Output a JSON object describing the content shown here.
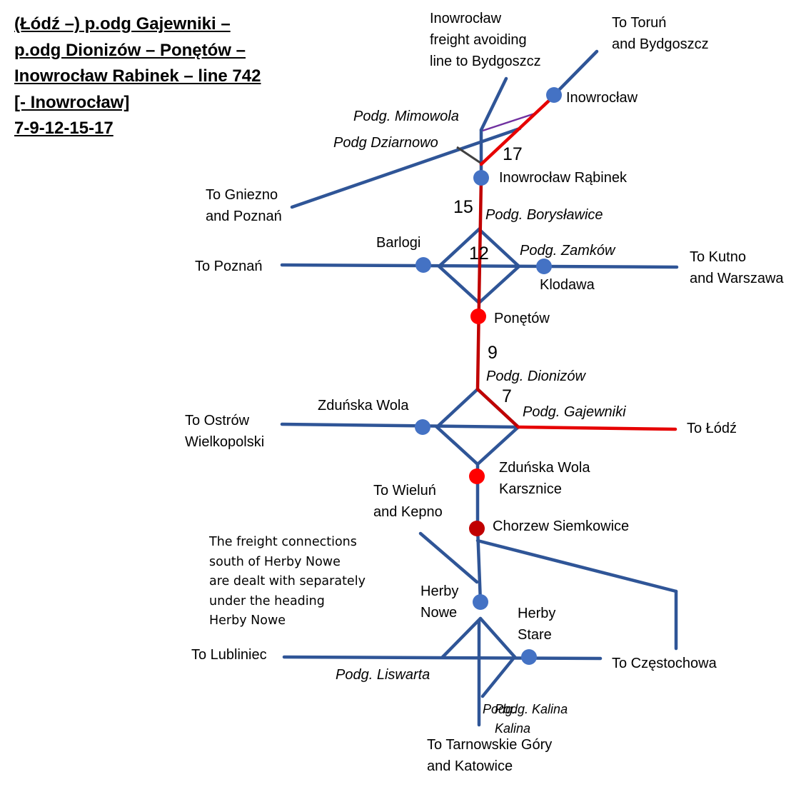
{
  "title": {
    "line1": "(Łódź –) p.odg Gajewniki –",
    "line2": "p.odg Dionizów – Ponętów –",
    "line3": "Inowrocław Rabinek – line 742",
    "line4": "[- Inowrocław]",
    "line5": "7-9-12-15-17"
  },
  "labels": {
    "freight_avoiding_1": "Inowrocław",
    "freight_avoiding_2": "freight avoiding",
    "freight_avoiding_3": "line to Bydgoszcz",
    "to_torun_1": "To Toruń",
    "to_torun_2": "and Bydgoszcz",
    "inowroclaw": "Inowrocław",
    "mimowola": "Podg. Mimowola",
    "dziarnowo": "Podg Dziarnowo",
    "rabinek": "Inowrocław Rąbinek",
    "to_gniezno_1": "To Gniezno",
    "to_gniezno_2": "and Poznań",
    "borystawice": "Podg. Borysławice",
    "barlogi": "Barlogi",
    "zamkow": "Podg. Zamków",
    "to_kutno_1": "To Kutno",
    "to_kutno_2": "and Warszawa",
    "to_poznan": "To Poznań",
    "klodawa": "Klodawa",
    "ponetow": "Ponętów",
    "dionizow": "Podg. Dionizów",
    "zdunska_wola": "Zduńska Wola",
    "gajewniki": "Podg. Gajewniki",
    "to_ostrow_1": "To Ostrów",
    "to_ostrow_2": "Wielkopolski",
    "to_lodz": "To Łódź",
    "karsznice_1": "Zduńska Wola",
    "karsznice_2": "Karsznice",
    "to_wielun_1": "To Wieluń",
    "to_wielun_2": "and Kepno",
    "chorzew": "Chorzew Siemkowice",
    "herby_nowe_1": "Herby",
    "herby_nowe_2": "Nowe",
    "herby_stare_1": "Herby",
    "herby_stare_2": "Stare",
    "to_lubliniec": "To Lubliniec",
    "to_czestochowa": "To Częstochowa",
    "liswarta": "Podg. Liswarta",
    "kalina_a": "Podg.",
    "kalina_b": "Kalina",
    "kalina_c": "Podg. Kalina",
    "kalina_d": "Kalina",
    "to_tarnowskie_1": "To Tarnowskie Góry",
    "to_tarnowskie_2": "and Katowice"
  },
  "numbers": {
    "n17": "17",
    "n15": "15",
    "n12": "12",
    "n9": "9",
    "n7": "7"
  },
  "note": {
    "line1": "The freight connections",
    "line2": "south of Herby Nowe",
    "line3": "are dealt with separately",
    "line4": "under the heading",
    "line5": "Herby Nowe"
  },
  "colors": {
    "line_blue": "#2f5597",
    "route_red": "#e60000",
    "route_dark_red": "#c00000",
    "station_blue": "#4472c4",
    "station_red": "#ff0000",
    "station_dark_red": "#c00000"
  }
}
